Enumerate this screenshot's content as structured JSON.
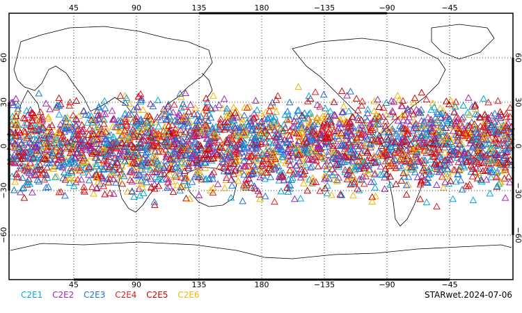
{
  "map": {
    "projection": "cylindrical",
    "lon_ticks_top": [
      "45",
      "90",
      "135",
      "180",
      "−135",
      "−90",
      "−45"
    ],
    "lon_ticks_bottom": [
      "45",
      "90",
      "135",
      "180",
      "−135",
      "−90",
      "−45"
    ],
    "lat_ticks_left": [
      "60",
      "30",
      "0",
      "−30",
      "−60"
    ],
    "lat_ticks_right": [
      "60",
      "30",
      "0",
      "−30",
      "−60"
    ],
    "marker_symbol": "open-triangle",
    "observation_band": "approximately 45S to 45N"
  },
  "legend": [
    {
      "label": "C2E1",
      "color": "#00a7d9"
    },
    {
      "label": "C2E2",
      "color": "#9c27b0"
    },
    {
      "label": "C2E3",
      "color": "#1e6fd9"
    },
    {
      "label": "C2E4",
      "color": "#e31a1c"
    },
    {
      "label": "C2E5",
      "color": "#cc0000"
    },
    {
      "label": "C2E6",
      "color": "#f5b400"
    }
  ],
  "stamp": "STARwet.2024-07-06"
}
